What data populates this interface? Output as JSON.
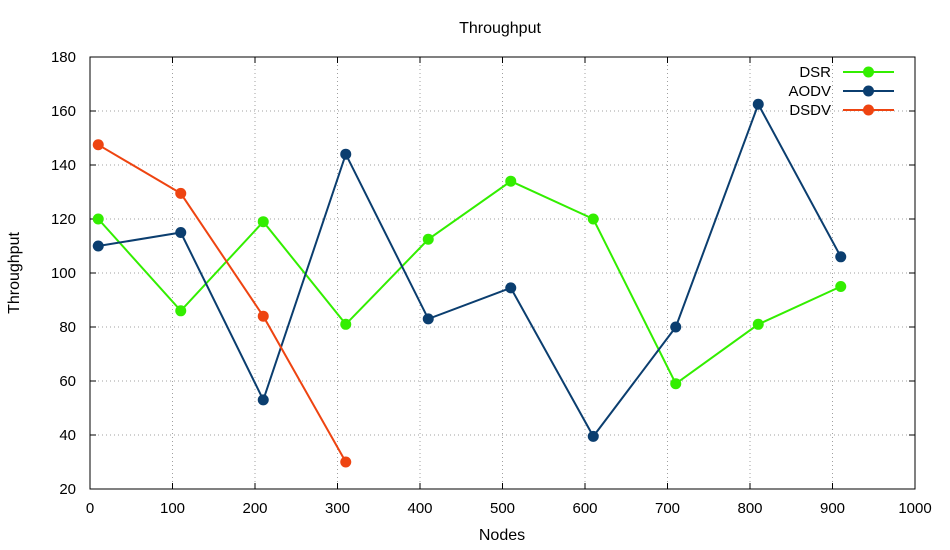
{
  "chart_data": {
    "type": "line",
    "title": "Throughput",
    "xlabel": "Nodes",
    "ylabel": "Throughput",
    "xlim": [
      0,
      1000
    ],
    "ylim": [
      20,
      180
    ],
    "xticks": [
      0,
      100,
      200,
      300,
      400,
      500,
      600,
      700,
      800,
      900,
      1000
    ],
    "yticks": [
      20,
      40,
      60,
      80,
      100,
      120,
      140,
      160,
      180
    ],
    "grid": true,
    "legend_position": "top-right",
    "series": [
      {
        "name": "DSR",
        "color": "#33ee00",
        "x": [
          10,
          110,
          210,
          310,
          410,
          510,
          610,
          710,
          810,
          910
        ],
        "y": [
          120,
          86,
          119,
          81,
          112.5,
          134,
          120,
          59,
          81,
          95
        ]
      },
      {
        "name": "AODV",
        "color": "#0b3e6f",
        "x": [
          10,
          110,
          210,
          310,
          410,
          510,
          610,
          710,
          810,
          910
        ],
        "y": [
          110,
          115,
          53,
          144,
          83,
          94.5,
          39.5,
          80,
          162.5,
          106
        ]
      },
      {
        "name": "DSDV",
        "color": "#ee4411",
        "x": [
          10,
          110,
          210,
          310
        ],
        "y": [
          147.5,
          129.5,
          84,
          30
        ]
      }
    ]
  }
}
